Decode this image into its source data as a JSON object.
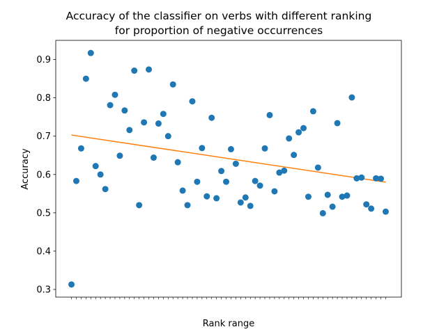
{
  "chart_data": {
    "type": "scatter",
    "title_line1": "Accuracy of the classifier on verbs with different ranking",
    "title_line2": "for proportion of negative occurrences",
    "xlabel": "Rank range",
    "ylabel": "Accuracy",
    "ylim": [
      0.28,
      0.95
    ],
    "yticks": [
      "0.3",
      "0.4",
      "0.5",
      "0.6",
      "0.7",
      "0.8",
      "0.9"
    ],
    "grid": false,
    "colors": {
      "points": "#1f77b4",
      "trend": "#ff7f0e"
    },
    "points": [
      {
        "x": 1,
        "y": 0.313
      },
      {
        "x": 2,
        "y": 0.583
      },
      {
        "x": 3,
        "y": 0.668
      },
      {
        "x": 4,
        "y": 0.85
      },
      {
        "x": 5,
        "y": 0.917
      },
      {
        "x": 6,
        "y": 0.622
      },
      {
        "x": 7,
        "y": 0.6
      },
      {
        "x": 8,
        "y": 0.562
      },
      {
        "x": 9,
        "y": 0.781
      },
      {
        "x": 10,
        "y": 0.808
      },
      {
        "x": 11,
        "y": 0.649
      },
      {
        "x": 12,
        "y": 0.767
      },
      {
        "x": 13,
        "y": 0.716
      },
      {
        "x": 14,
        "y": 0.871
      },
      {
        "x": 15,
        "y": 0.52
      },
      {
        "x": 16,
        "y": 0.736
      },
      {
        "x": 17,
        "y": 0.874
      },
      {
        "x": 18,
        "y": 0.644
      },
      {
        "x": 19,
        "y": 0.733
      },
      {
        "x": 20,
        "y": 0.758
      },
      {
        "x": 21,
        "y": 0.7
      },
      {
        "x": 22,
        "y": 0.835
      },
      {
        "x": 23,
        "y": 0.632
      },
      {
        "x": 24,
        "y": 0.558
      },
      {
        "x": 25,
        "y": 0.52
      },
      {
        "x": 26,
        "y": 0.791
      },
      {
        "x": 27,
        "y": 0.581
      },
      {
        "x": 28,
        "y": 0.669
      },
      {
        "x": 29,
        "y": 0.543
      },
      {
        "x": 30,
        "y": 0.748
      },
      {
        "x": 31,
        "y": 0.538
      },
      {
        "x": 32,
        "y": 0.609
      },
      {
        "x": 33,
        "y": 0.581
      },
      {
        "x": 34,
        "y": 0.666
      },
      {
        "x": 35,
        "y": 0.628
      },
      {
        "x": 36,
        "y": 0.527
      },
      {
        "x": 37,
        "y": 0.54
      },
      {
        "x": 38,
        "y": 0.518
      },
      {
        "x": 39,
        "y": 0.583
      },
      {
        "x": 40,
        "y": 0.571
      },
      {
        "x": 41,
        "y": 0.668
      },
      {
        "x": 42,
        "y": 0.755
      },
      {
        "x": 43,
        "y": 0.556
      },
      {
        "x": 44,
        "y": 0.605
      },
      {
        "x": 45,
        "y": 0.61
      },
      {
        "x": 46,
        "y": 0.694
      },
      {
        "x": 47,
        "y": 0.651
      },
      {
        "x": 48,
        "y": 0.71
      },
      {
        "x": 49,
        "y": 0.721
      },
      {
        "x": 50,
        "y": 0.542
      },
      {
        "x": 51,
        "y": 0.765
      },
      {
        "x": 52,
        "y": 0.618
      },
      {
        "x": 53,
        "y": 0.499
      },
      {
        "x": 54,
        "y": 0.547
      },
      {
        "x": 55,
        "y": 0.516
      },
      {
        "x": 56,
        "y": 0.734
      },
      {
        "x": 57,
        "y": 0.542
      },
      {
        "x": 58,
        "y": 0.545
      },
      {
        "x": 59,
        "y": 0.801
      },
      {
        "x": 60,
        "y": 0.59
      },
      {
        "x": 61,
        "y": 0.592
      },
      {
        "x": 62,
        "y": 0.522
      },
      {
        "x": 63,
        "y": 0.511
      },
      {
        "x": 64,
        "y": 0.59
      },
      {
        "x": 65,
        "y": 0.589
      },
      {
        "x": 66,
        "y": 0.503
      }
    ],
    "trendline": {
      "x": [
        1,
        66
      ],
      "y": [
        0.703,
        0.58
      ]
    }
  }
}
